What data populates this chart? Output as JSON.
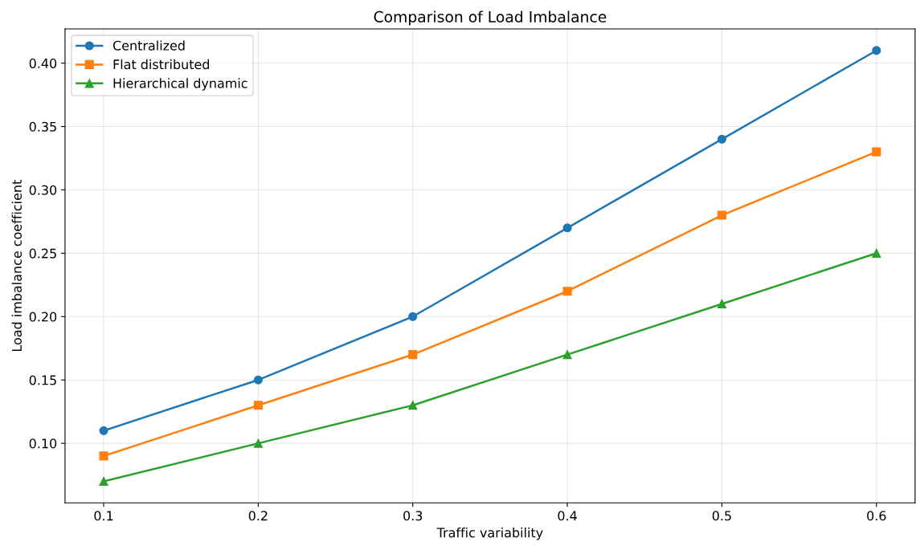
{
  "chart_data": {
    "type": "line",
    "title": "Comparison of Load Imbalance",
    "xlabel": "Traffic variability",
    "ylabel": "Load imbalance coefficient",
    "x": [
      0.1,
      0.2,
      0.3,
      0.4,
      0.5,
      0.6
    ],
    "series": [
      {
        "name": "Centralized",
        "color": "#1f77b4",
        "marker": "circle",
        "values": [
          0.11,
          0.15,
          0.2,
          0.27,
          0.34,
          0.41
        ]
      },
      {
        "name": "Flat distributed",
        "color": "#ff7f0e",
        "marker": "square",
        "values": [
          0.09,
          0.13,
          0.17,
          0.22,
          0.28,
          0.33
        ]
      },
      {
        "name": "Hierarchical dynamic",
        "color": "#2ca02c",
        "marker": "triangle",
        "values": [
          0.07,
          0.1,
          0.13,
          0.17,
          0.21,
          0.25
        ]
      }
    ],
    "xlim": [
      0.075,
      0.625
    ],
    "xticks": [
      {
        "value": 0.1,
        "label": "0.1"
      },
      {
        "value": 0.2,
        "label": "0.2"
      },
      {
        "value": 0.3,
        "label": "0.3"
      },
      {
        "value": 0.4,
        "label": "0.4"
      },
      {
        "value": 0.5,
        "label": "0.5"
      },
      {
        "value": 0.6,
        "label": "0.6"
      }
    ],
    "ylim": [
      0.053,
      0.427
    ],
    "yticks": [
      {
        "value": 0.1,
        "label": "0.10"
      },
      {
        "value": 0.15,
        "label": "0.15"
      },
      {
        "value": 0.2,
        "label": "0.20"
      },
      {
        "value": 0.25,
        "label": "0.25"
      },
      {
        "value": 0.3,
        "label": "0.30"
      },
      {
        "value": 0.35,
        "label": "0.35"
      },
      {
        "value": 0.4,
        "label": "0.40"
      }
    ],
    "grid": true,
    "legend": "top left",
    "line_style": "solid"
  }
}
